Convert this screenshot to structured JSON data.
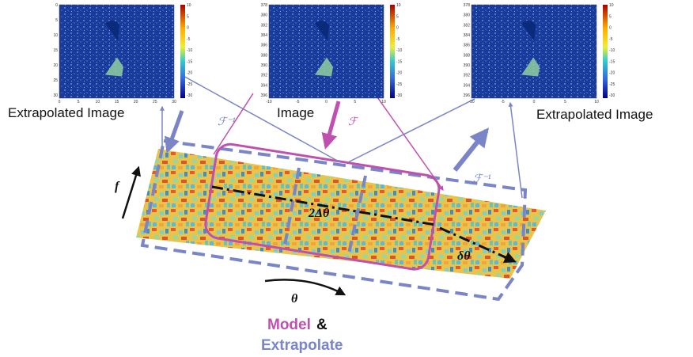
{
  "panels": [
    {
      "label": "Extrapolated Image",
      "xticks": [
        "0",
        "5",
        "10",
        "15",
        "20",
        "25",
        "30"
      ],
      "yticks": [
        "0",
        "5",
        "10",
        "15",
        "20",
        "25",
        "30"
      ],
      "colorbar_ticks": [
        "10",
        "5",
        "0",
        "-5",
        "-10",
        "-15",
        "-20",
        "-25",
        "-30"
      ]
    },
    {
      "label": "Image",
      "xticks": [
        "-10",
        "-5",
        "0",
        "5",
        "10"
      ],
      "yticks": [
        "378",
        "380",
        "382",
        "384",
        "386",
        "388",
        "390",
        "392",
        "394",
        "396"
      ],
      "colorbar_ticks": [
        "10",
        "5",
        "0",
        "-5",
        "-10",
        "-15",
        "-20",
        "-25",
        "-30"
      ]
    },
    {
      "label": "Extrapolated Image",
      "xticks": [
        "-10",
        "-5",
        "0",
        "5",
        "10"
      ],
      "yticks": [
        "378",
        "380",
        "382",
        "384",
        "386",
        "388",
        "390",
        "392",
        "394",
        "396"
      ],
      "colorbar_ticks": [
        "10",
        "5",
        "0",
        "-5",
        "-10",
        "-15",
        "-20",
        "-25",
        "-30"
      ]
    }
  ],
  "operators": [
    "ℱ⁻¹",
    "ℱ",
    "ℱ⁻¹"
  ],
  "axes": {
    "f": "f",
    "theta": "θ"
  },
  "annotations": {
    "window": "2Δθ",
    "step": "δθ"
  },
  "caption": {
    "model": "Model",
    "and": "&",
    "extrapolate": "Extrapolate"
  }
}
